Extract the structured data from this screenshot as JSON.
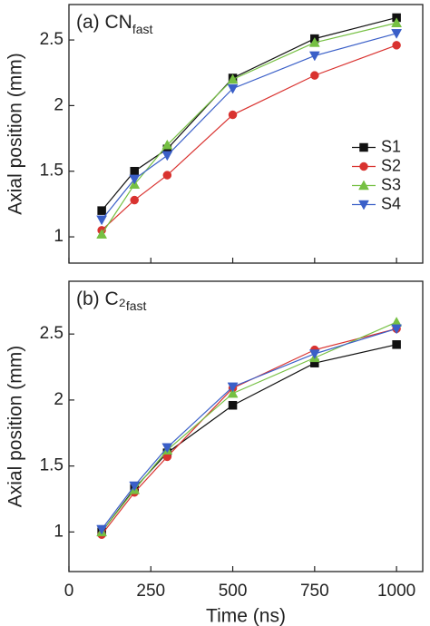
{
  "chart_data": [
    {
      "type": "line",
      "title": "(a) CN",
      "title_subscript": "fast",
      "y_label": "Axial position (mm)",
      "x": [
        100,
        200,
        300,
        500,
        750,
        1000
      ],
      "xlim": [
        0,
        1080
      ],
      "xticks": [
        0,
        250,
        500,
        750,
        1000
      ],
      "xtick_labels": false,
      "ylim": [
        0.8,
        2.77
      ],
      "yticks": [
        1.0,
        1.5,
        2.0,
        2.5
      ],
      "legend": "center right",
      "series": [
        {
          "name": "S1",
          "color": "#111111",
          "marker": "square",
          "values": [
            1.2,
            1.5,
            1.67,
            2.21,
            2.51,
            2.67
          ]
        },
        {
          "name": "S2",
          "color": "#d9322f",
          "marker": "circle",
          "values": [
            1.05,
            1.28,
            1.47,
            1.93,
            2.23,
            2.46
          ]
        },
        {
          "name": "S3",
          "color": "#76c043",
          "marker": "triangle-up",
          "values": [
            1.02,
            1.4,
            1.7,
            2.2,
            2.48,
            2.63
          ]
        },
        {
          "name": "S4",
          "color": "#3a5fc8",
          "marker": "triangle-down",
          "values": [
            1.13,
            1.44,
            1.62,
            2.13,
            2.38,
            2.55
          ]
        }
      ]
    },
    {
      "type": "line",
      "title": "(b) C₂",
      "title_subscript": "fast",
      "y_label": "Axial position (mm)",
      "x_label": "Time (ns)",
      "x": [
        100,
        200,
        300,
        500,
        750,
        1000
      ],
      "xlim": [
        0,
        1080
      ],
      "xticks": [
        0,
        250,
        500,
        750,
        1000
      ],
      "xtick_labels": true,
      "ylim": [
        0.7,
        2.9
      ],
      "yticks": [
        1.0,
        1.5,
        2.0,
        2.5
      ],
      "legend": false,
      "series": [
        {
          "name": "S1",
          "color": "#111111",
          "marker": "square",
          "values": [
            1.0,
            1.33,
            1.6,
            1.96,
            2.28,
            2.42
          ]
        },
        {
          "name": "S2",
          "color": "#d9322f",
          "marker": "circle",
          "values": [
            0.98,
            1.3,
            1.57,
            2.09,
            2.38,
            2.54
          ]
        },
        {
          "name": "S3",
          "color": "#76c043",
          "marker": "triangle-up",
          "values": [
            1.0,
            1.32,
            1.62,
            2.05,
            2.32,
            2.59
          ]
        },
        {
          "name": "S4",
          "color": "#3a5fc8",
          "marker": "triangle-down",
          "values": [
            1.02,
            1.35,
            1.64,
            2.1,
            2.35,
            2.54
          ]
        }
      ]
    }
  ]
}
